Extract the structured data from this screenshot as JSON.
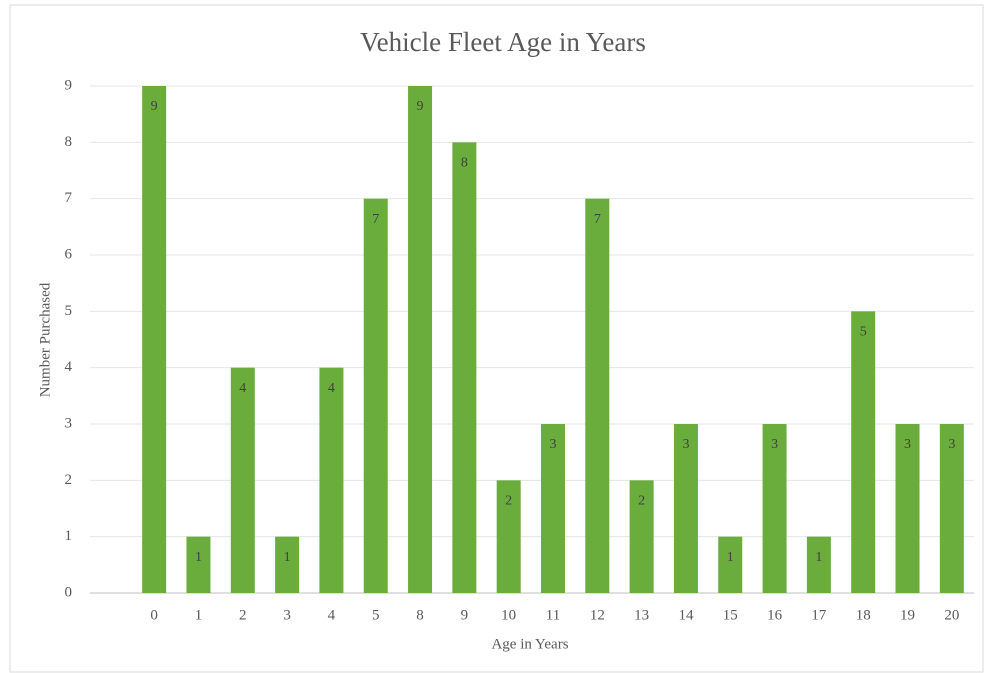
{
  "chart_data": {
    "type": "bar",
    "title": "Vehicle Fleet Age in Years",
    "x_label": "Age in Years",
    "y_label": "Number Purchased",
    "categories": [
      "0",
      "1",
      "2",
      "3",
      "4",
      "5",
      "8",
      "9",
      "10",
      "11",
      "12",
      "13",
      "14",
      "15",
      "16",
      "17",
      "18",
      "19",
      "20"
    ],
    "values": [
      9,
      1,
      4,
      1,
      4,
      7,
      9,
      8,
      2,
      3,
      7,
      2,
      3,
      1,
      3,
      1,
      5,
      3,
      3
    ],
    "color": "#6aad3d",
    "ylim": [
      0,
      9
    ],
    "yticks": [
      0,
      1,
      2,
      3,
      4,
      5,
      6,
      7,
      8,
      9
    ],
    "grid": true
  }
}
